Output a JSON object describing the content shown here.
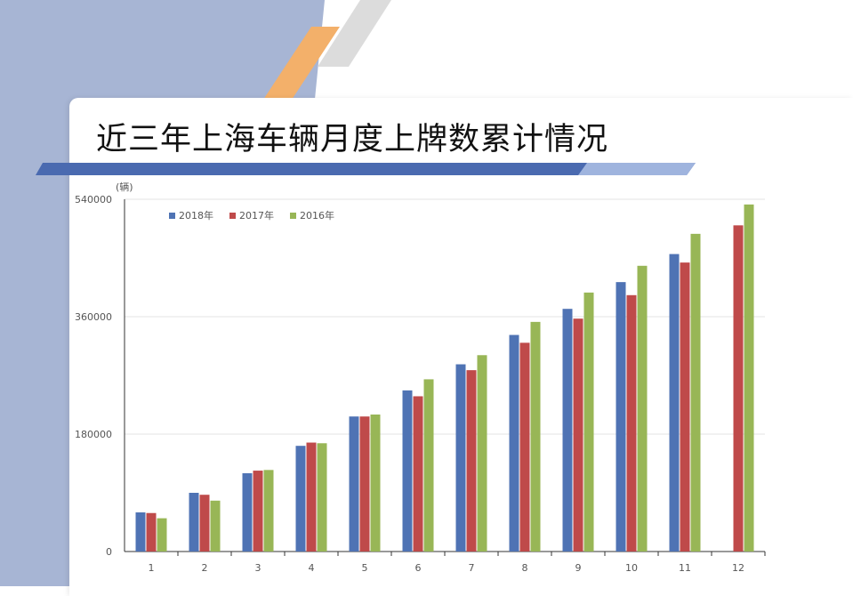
{
  "page": {
    "title": "近三年上海车辆月度上牌数累计情况"
  },
  "colors": {
    "background": "#a7b5d4",
    "accent_orange": "#f3b06a",
    "accent_gray": "#d9d9d9",
    "band_blue": "#4a6ab0"
  },
  "chart_data": {
    "type": "bar",
    "title": "近三年上海车辆月度上牌数累计情况",
    "unit_label": "(辆)",
    "xlabel": "",
    "ylabel": "",
    "categories": [
      "1",
      "2",
      "3",
      "4",
      "5",
      "6",
      "7",
      "8",
      "9",
      "10",
      "11",
      "12"
    ],
    "ylim": [
      0,
      540000
    ],
    "yticks": [
      "0",
      "180000",
      "360000",
      "540000"
    ],
    "ytick_values": [
      0,
      180000,
      360000,
      540000
    ],
    "grid": true,
    "legend_position": "top-left",
    "series": [
      {
        "name": "2018年",
        "color": "#4f73b4",
        "values": [
          60000,
          90000,
          120000,
          162000,
          207000,
          247000,
          287000,
          332000,
          372000,
          413000,
          456000,
          null
        ]
      },
      {
        "name": "2017年",
        "color": "#bf4a4a",
        "values": [
          59000,
          87000,
          124000,
          167000,
          207000,
          238000,
          278000,
          320000,
          357000,
          393000,
          443000,
          500000
        ]
      },
      {
        "name": "2016年",
        "color": "#98b656",
        "values": [
          51000,
          78000,
          125000,
          166000,
          210000,
          264000,
          301000,
          352000,
          397000,
          438000,
          487000,
          532000
        ]
      }
    ]
  }
}
